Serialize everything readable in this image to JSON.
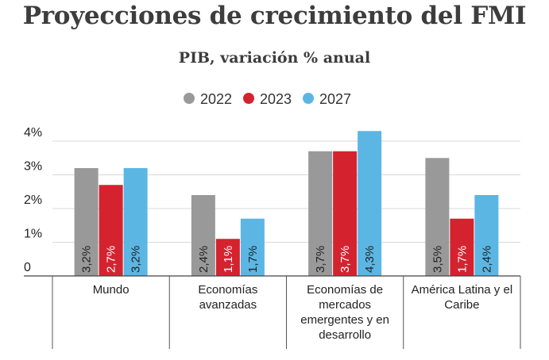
{
  "chart_data": {
    "type": "bar",
    "title": "Proyecciones de crecimiento del FMI",
    "subtitle": "PIB, variación % anual",
    "categories": [
      [
        "Mundo"
      ],
      [
        "Economías",
        "avanzadas"
      ],
      [
        "Economías de",
        "mercados",
        "emergentes y en",
        "desarrollo"
      ],
      [
        "América Latina y el",
        "Caribe"
      ]
    ],
    "series": [
      {
        "name": "2022",
        "color": "#999999",
        "values": [
          3.2,
          2.4,
          3.7,
          3.5
        ],
        "labels": [
          "3,2%",
          "2,4%",
          "3,7%",
          "3,5%"
        ],
        "label_color": "#222222"
      },
      {
        "name": "2023",
        "color": "#d4232f",
        "values": [
          2.7,
          1.1,
          3.7,
          1.7
        ],
        "labels": [
          "2,7%",
          "1,1%",
          "3,7%",
          "1,7%"
        ],
        "label_color": "#ffffff"
      },
      {
        "name": "2027",
        "color": "#5bb6e4",
        "values": [
          3.2,
          1.7,
          4.3,
          2.4
        ],
        "labels": [
          "3,2%",
          "1,7%",
          "4,3%",
          "2,4%"
        ],
        "label_color": "#222222"
      }
    ],
    "y_ticks": [
      0,
      1,
      2,
      3,
      4
    ],
    "y_tick_labels": [
      "0",
      "1%",
      "2%",
      "3%",
      "4%"
    ],
    "ylim": [
      0,
      4.4
    ],
    "grid": true,
    "legend_position": "top-center"
  }
}
